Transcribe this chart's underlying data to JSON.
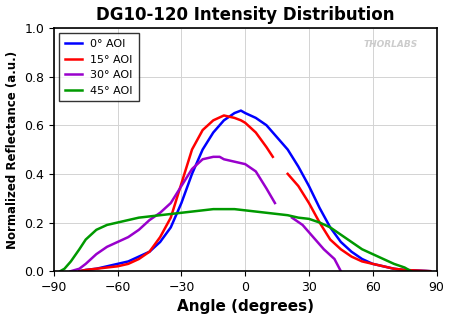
{
  "title": "DG10-120 Intensity Distribution",
  "xlabel": "Angle (degrees)",
  "ylabel": "Normalized Reflectance (a.u.)",
  "xlim": [
    -90,
    90
  ],
  "ylim": [
    0.0,
    1.0
  ],
  "xticks": [
    -90,
    -60,
    -30,
    0,
    30,
    60,
    90
  ],
  "yticks": [
    0.0,
    0.2,
    0.4,
    0.6,
    0.8,
    1.0
  ],
  "watermark": "THORLABS",
  "legend": [
    "0° AOI",
    "15° AOI",
    "30° AOI",
    "45° AOI"
  ],
  "colors": [
    "#0000ff",
    "#ff0000",
    "#9900cc",
    "#009900"
  ],
  "curves": {
    "blue_0aoi": {
      "x": [
        -78,
        -75,
        -70,
        -65,
        -60,
        -55,
        -50,
        -45,
        -40,
        -35,
        -30,
        -25,
        -20,
        -15,
        -10,
        -5,
        -2,
        0,
        5,
        10,
        15,
        20,
        25,
        30,
        35,
        40,
        45,
        50,
        55,
        60,
        65,
        70,
        75,
        80,
        85,
        87
      ],
      "y": [
        0.0,
        0.005,
        0.01,
        0.02,
        0.03,
        0.04,
        0.06,
        0.08,
        0.12,
        0.18,
        0.28,
        0.4,
        0.5,
        0.57,
        0.62,
        0.65,
        0.66,
        0.65,
        0.63,
        0.6,
        0.55,
        0.5,
        0.43,
        0.35,
        0.26,
        0.18,
        0.12,
        0.08,
        0.05,
        0.03,
        0.02,
        0.01,
        0.005,
        0.003,
        0.001,
        0.0
      ]
    },
    "red_15aoi_seg1": {
      "x": [
        -78,
        -75,
        -70,
        -65,
        -60,
        -55,
        -50,
        -45,
        -40,
        -35,
        -30,
        -25,
        -20,
        -15,
        -10,
        -5,
        -2,
        0,
        5,
        10,
        13
      ],
      "y": [
        0.0,
        0.005,
        0.01,
        0.015,
        0.02,
        0.03,
        0.05,
        0.08,
        0.14,
        0.22,
        0.36,
        0.5,
        0.58,
        0.62,
        0.64,
        0.63,
        0.62,
        0.61,
        0.57,
        0.51,
        0.47
      ]
    },
    "red_15aoi_seg2": {
      "x": [
        20,
        25,
        30,
        35,
        40,
        45,
        50,
        55,
        60,
        65,
        70,
        75,
        80,
        85,
        87
      ],
      "y": [
        0.4,
        0.35,
        0.28,
        0.2,
        0.13,
        0.09,
        0.06,
        0.04,
        0.03,
        0.02,
        0.01,
        0.005,
        0.003,
        0.001,
        0.0
      ]
    },
    "purple_30aoi_seg1": {
      "x": [
        -82,
        -78,
        -75,
        -70,
        -65,
        -60,
        -55,
        -50,
        -45,
        -40,
        -35,
        -30,
        -25,
        -20,
        -15,
        -12,
        -10,
        -5,
        0,
        5,
        10,
        14
      ],
      "y": [
        0.0,
        0.01,
        0.03,
        0.07,
        0.1,
        0.12,
        0.14,
        0.17,
        0.21,
        0.24,
        0.28,
        0.35,
        0.42,
        0.46,
        0.47,
        0.47,
        0.46,
        0.45,
        0.44,
        0.41,
        0.34,
        0.28
      ]
    },
    "purple_30aoi_seg2": {
      "x": [
        22,
        27,
        32,
        37,
        42,
        45
      ],
      "y": [
        0.22,
        0.19,
        0.14,
        0.09,
        0.05,
        0.0
      ]
    },
    "green_45aoi": {
      "x": [
        -87,
        -85,
        -82,
        -78,
        -75,
        -70,
        -65,
        -60,
        -55,
        -50,
        -45,
        -40,
        -35,
        -30,
        -25,
        -20,
        -15,
        -10,
        -5,
        0,
        5,
        10,
        15,
        20,
        25,
        30,
        35,
        40,
        45,
        50,
        55,
        60,
        65,
        70,
        75,
        78
      ],
      "y": [
        0.0,
        0.01,
        0.04,
        0.09,
        0.13,
        0.17,
        0.19,
        0.2,
        0.21,
        0.22,
        0.225,
        0.23,
        0.235,
        0.24,
        0.245,
        0.25,
        0.255,
        0.255,
        0.255,
        0.25,
        0.245,
        0.24,
        0.235,
        0.23,
        0.22,
        0.215,
        0.2,
        0.18,
        0.15,
        0.12,
        0.09,
        0.07,
        0.05,
        0.03,
        0.015,
        0.0
      ]
    }
  }
}
